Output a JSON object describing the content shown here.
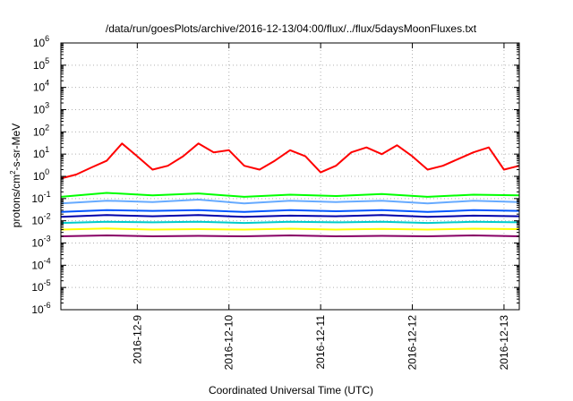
{
  "chart_data": {
    "type": "line",
    "title": "/data/run/goesPlots/archive/2016-12-13/04:00/flux/../flux/5daysMoonFluxes.txt",
    "xlabel": "Coordinated Universal Time (UTC)",
    "ylabel": {
      "prefix": "protons/cm",
      "sup": "2",
      "suffix": "-s-sr-MeV"
    },
    "y_scale": "log",
    "ylim": [
      1e-06,
      1000000.0
    ],
    "y_ticks": [
      {
        "value": 1e-06,
        "base": "10",
        "exp": "-6"
      },
      {
        "value": 1e-05,
        "base": "10",
        "exp": "-5"
      },
      {
        "value": 0.0001,
        "base": "10",
        "exp": "-4"
      },
      {
        "value": 0.001,
        "base": "10",
        "exp": "-3"
      },
      {
        "value": 0.01,
        "base": "10",
        "exp": "-2"
      },
      {
        "value": 0.1,
        "base": "10",
        "exp": "-1"
      },
      {
        "value": 1,
        "base": "10",
        "exp": "0"
      },
      {
        "value": 10,
        "base": "10",
        "exp": "1"
      },
      {
        "value": 100,
        "base": "10",
        "exp": "2"
      },
      {
        "value": 1000,
        "base": "10",
        "exp": "3"
      },
      {
        "value": 10000,
        "base": "10",
        "exp": "4"
      },
      {
        "value": 100000,
        "base": "10",
        "exp": "5"
      },
      {
        "value": 1000000,
        "base": "10",
        "exp": "6"
      }
    ],
    "xlim": [
      "2016-12-08 04:00",
      "2016-12-13 04:00"
    ],
    "x_ticks": [
      "2016-12-9",
      "2016-12-10",
      "2016-12-11",
      "2016-12-12",
      "2016-12-13"
    ],
    "x_tick_dates": [
      "2016-12-09 00:00",
      "2016-12-10 00:00",
      "2016-12-11 00:00",
      "2016-12-12 00:00",
      "2016-12-13 00:00"
    ],
    "grid": true,
    "series": [
      {
        "color": "#ff0000",
        "x": [
          "2016-12-08 04:00",
          "2016-12-08 08:00",
          "2016-12-08 12:00",
          "2016-12-08 16:00",
          "2016-12-08 20:00",
          "2016-12-09 00:00",
          "2016-12-09 04:00",
          "2016-12-09 08:00",
          "2016-12-09 12:00",
          "2016-12-09 16:00",
          "2016-12-09 20:00",
          "2016-12-10 00:00",
          "2016-12-10 04:00",
          "2016-12-10 08:00",
          "2016-12-10 12:00",
          "2016-12-10 16:00",
          "2016-12-10 20:00",
          "2016-12-11 00:00",
          "2016-12-11 04:00",
          "2016-12-11 08:00",
          "2016-12-11 12:00",
          "2016-12-11 16:00",
          "2016-12-11 20:00",
          "2016-12-12 00:00",
          "2016-12-12 04:00",
          "2016-12-12 08:00",
          "2016-12-12 12:00",
          "2016-12-12 16:00",
          "2016-12-12 20:00",
          "2016-12-13 00:00",
          "2016-12-13 04:00"
        ],
        "values": [
          0.8,
          1.2,
          2.5,
          5,
          30,
          8,
          2,
          3,
          8,
          30,
          12,
          15,
          3,
          2,
          5,
          15,
          8,
          1.5,
          3,
          12,
          20,
          10,
          25,
          8,
          2,
          3,
          6,
          12,
          20,
          2,
          3
        ]
      },
      {
        "color": "#00ff00",
        "x": [
          "2016-12-08 04:00",
          "2016-12-08 16:00",
          "2016-12-09 04:00",
          "2016-12-09 16:00",
          "2016-12-10 04:00",
          "2016-12-10 16:00",
          "2016-12-11 04:00",
          "2016-12-11 16:00",
          "2016-12-12 04:00",
          "2016-12-12 16:00",
          "2016-12-13 04:00"
        ],
        "values": [
          0.12,
          0.18,
          0.14,
          0.17,
          0.12,
          0.15,
          0.13,
          0.16,
          0.12,
          0.15,
          0.14
        ]
      },
      {
        "color": "#66aaff",
        "x": [
          "2016-12-08 04:00",
          "2016-12-08 16:00",
          "2016-12-09 04:00",
          "2016-12-09 16:00",
          "2016-12-10 04:00",
          "2016-12-10 16:00",
          "2016-12-11 04:00",
          "2016-12-11 16:00",
          "2016-12-12 04:00",
          "2016-12-12 16:00",
          "2016-12-13 04:00"
        ],
        "values": [
          0.06,
          0.08,
          0.07,
          0.09,
          0.06,
          0.08,
          0.07,
          0.08,
          0.06,
          0.08,
          0.07
        ]
      },
      {
        "color": "#0055ff",
        "x": [
          "2016-12-08 04:00",
          "2016-12-08 16:00",
          "2016-12-09 04:00",
          "2016-12-09 16:00",
          "2016-12-10 04:00",
          "2016-12-10 16:00",
          "2016-12-11 04:00",
          "2016-12-11 16:00",
          "2016-12-12 04:00",
          "2016-12-12 16:00",
          "2016-12-13 04:00"
        ],
        "values": [
          0.025,
          0.03,
          0.028,
          0.03,
          0.025,
          0.03,
          0.027,
          0.03,
          0.025,
          0.03,
          0.028
        ]
      },
      {
        "color": "#0000aa",
        "x": [
          "2016-12-08 04:00",
          "2016-12-08 16:00",
          "2016-12-09 04:00",
          "2016-12-09 16:00",
          "2016-12-10 04:00",
          "2016-12-10 16:00",
          "2016-12-11 04:00",
          "2016-12-11 16:00",
          "2016-12-12 04:00",
          "2016-12-12 16:00",
          "2016-12-13 04:00"
        ],
        "values": [
          0.015,
          0.018,
          0.016,
          0.018,
          0.015,
          0.017,
          0.016,
          0.018,
          0.015,
          0.017,
          0.016
        ]
      },
      {
        "color": "#00cccc",
        "x": [
          "2016-12-08 04:00",
          "2016-12-08 16:00",
          "2016-12-09 04:00",
          "2016-12-09 16:00",
          "2016-12-10 04:00",
          "2016-12-10 16:00",
          "2016-12-11 04:00",
          "2016-12-11 16:00",
          "2016-12-12 04:00",
          "2016-12-12 16:00",
          "2016-12-13 04:00"
        ],
        "values": [
          0.008,
          0.009,
          0.0085,
          0.009,
          0.008,
          0.009,
          0.0085,
          0.009,
          0.008,
          0.009,
          0.0085
        ]
      },
      {
        "color": "#ffff00",
        "x": [
          "2016-12-08 04:00",
          "2016-12-08 16:00",
          "2016-12-09 04:00",
          "2016-12-09 16:00",
          "2016-12-10 04:00",
          "2016-12-10 16:00",
          "2016-12-11 04:00",
          "2016-12-11 16:00",
          "2016-12-12 04:00",
          "2016-12-12 16:00",
          "2016-12-13 04:00"
        ],
        "values": [
          0.004,
          0.0045,
          0.004,
          0.0042,
          0.004,
          0.0044,
          0.004,
          0.0043,
          0.004,
          0.0044,
          0.0042
        ]
      },
      {
        "color": "#880066",
        "x": [
          "2016-12-08 04:00",
          "2016-12-08 16:00",
          "2016-12-09 04:00",
          "2016-12-09 16:00",
          "2016-12-10 04:00",
          "2016-12-10 16:00",
          "2016-12-11 04:00",
          "2016-12-11 16:00",
          "2016-12-12 04:00",
          "2016-12-12 16:00",
          "2016-12-13 04:00"
        ],
        "values": [
          0.002,
          0.0022,
          0.002,
          0.0021,
          0.002,
          0.0022,
          0.002,
          0.0021,
          0.002,
          0.0022,
          0.002
        ]
      }
    ]
  }
}
